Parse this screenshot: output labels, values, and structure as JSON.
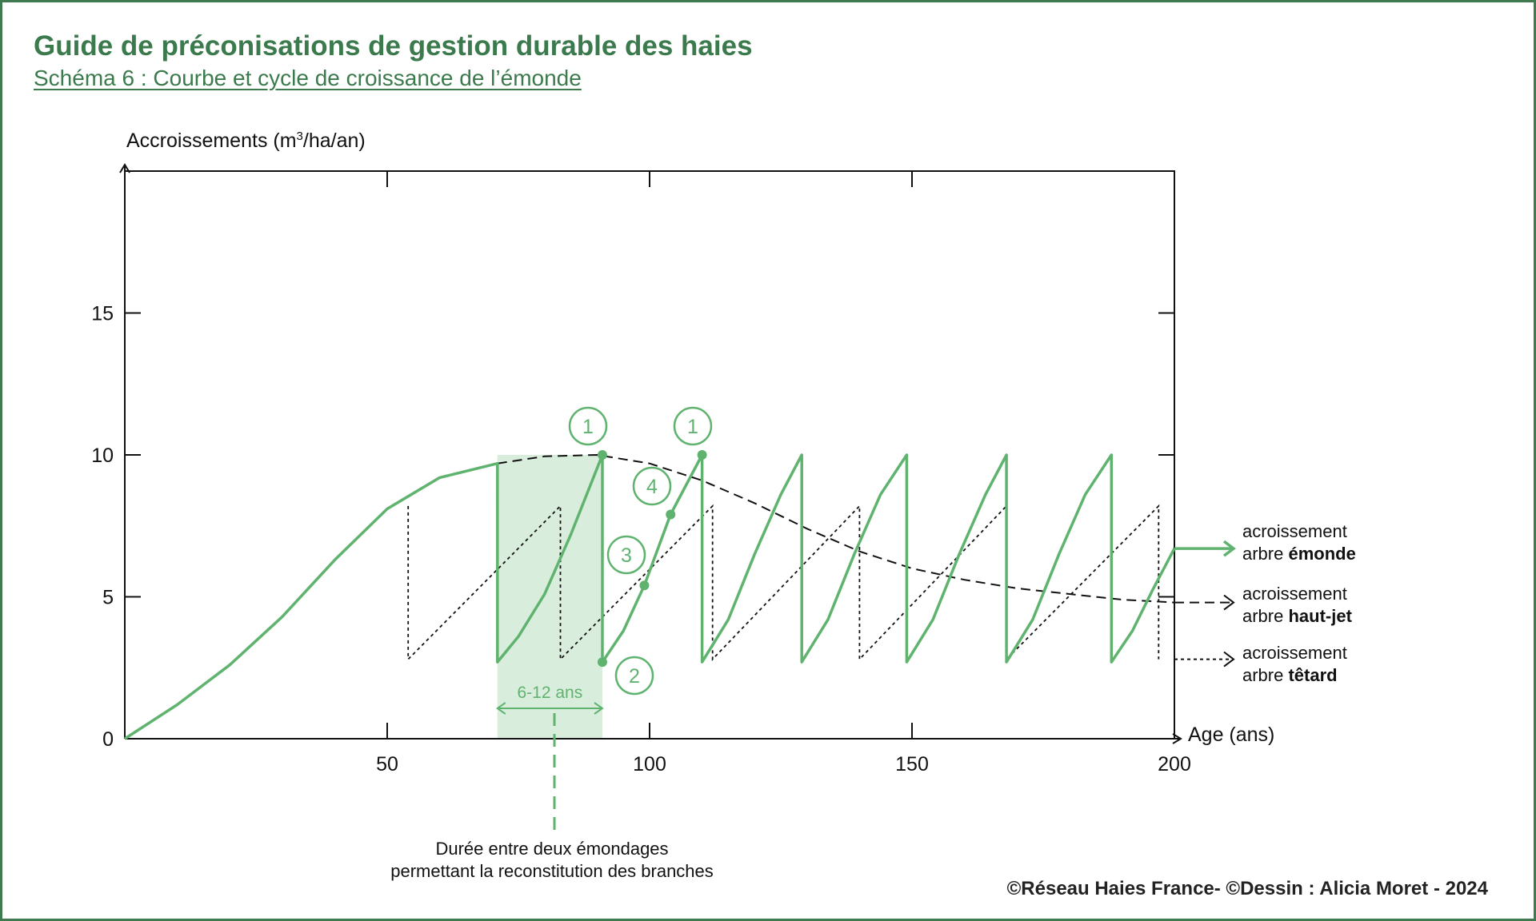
{
  "header": {
    "title": "Guide de préconisations de gestion durable des haies",
    "subtitle": "Schéma 6 : Courbe et cycle de croissance de l’émonde"
  },
  "credit": "©Réseau Haies France- ©Dessin : Alicia Moret - 2024",
  "colors": {
    "green": "#5fb36f",
    "green_fill": "#d9eddd",
    "title_green": "#3a7a4c",
    "axis": "#111111"
  },
  "chart_data": {
    "type": "line",
    "ylabel_base": "Accroissements (m",
    "ylabel_sup": "3",
    "ylabel_end": "/ha/an)",
    "xlabel": "Age (ans)",
    "xlim": [
      0,
      200
    ],
    "ylim": [
      0,
      20
    ],
    "x_ticks": [
      50,
      100,
      150,
      200
    ],
    "y_ticks": [
      0,
      5,
      10,
      15
    ],
    "series": [
      {
        "name": "acroissement arbre émonde",
        "label_normal": "arbre ",
        "label_bold": "émonde",
        "style": "solid-green",
        "points": [
          [
            0,
            0
          ],
          [
            10,
            1.2
          ],
          [
            20,
            2.6
          ],
          [
            30,
            4.3
          ],
          [
            40,
            6.3
          ],
          [
            50,
            8.1
          ],
          [
            60,
            9.2
          ],
          [
            71,
            9.7
          ],
          [
            71,
            2.7
          ],
          [
            75,
            3.6
          ],
          [
            80,
            5.1
          ],
          [
            85,
            7.2
          ],
          [
            91,
            10
          ],
          [
            91,
            2.7
          ],
          [
            95,
            3.8
          ],
          [
            99,
            5.4
          ],
          [
            104,
            7.9
          ],
          [
            110,
            10
          ],
          [
            110,
            2.7
          ],
          [
            115,
            4.2
          ],
          [
            120,
            6.5
          ],
          [
            125,
            8.6
          ],
          [
            129,
            10
          ],
          [
            129,
            2.7
          ],
          [
            134,
            4.2
          ],
          [
            139,
            6.5
          ],
          [
            144,
            8.6
          ],
          [
            149,
            10
          ],
          [
            149,
            2.7
          ],
          [
            154,
            4.2
          ],
          [
            159,
            6.5
          ],
          [
            164,
            8.6
          ],
          [
            168,
            10
          ],
          [
            168,
            2.7
          ],
          [
            173,
            4.2
          ],
          [
            178,
            6.5
          ],
          [
            183,
            8.6
          ],
          [
            188,
            10
          ],
          [
            188,
            2.7
          ],
          [
            192,
            3.8
          ],
          [
            196,
            5.3
          ],
          [
            200,
            6.7
          ]
        ]
      },
      {
        "name": "acroissement arbre haut-jet",
        "label_normal": "arbre ",
        "label_bold": "haut-jet",
        "style": "dashed-black",
        "points": [
          [
            71,
            9.7
          ],
          [
            80,
            9.95
          ],
          [
            90,
            10
          ],
          [
            100,
            9.7
          ],
          [
            110,
            9.1
          ],
          [
            120,
            8.3
          ],
          [
            130,
            7.4
          ],
          [
            140,
            6.6
          ],
          [
            150,
            6.0
          ],
          [
            160,
            5.6
          ],
          [
            170,
            5.3
          ],
          [
            180,
            5.1
          ],
          [
            190,
            4.9
          ],
          [
            200,
            4.8
          ]
        ]
      },
      {
        "name": "acroissement arbre têtard",
        "label_normal": "arbre ",
        "label_bold": "têtard",
        "style": "dotted-black",
        "points": [
          [
            54,
            8.2
          ],
          [
            54,
            2.8
          ],
          [
            83,
            8.2
          ],
          [
            83,
            2.8
          ],
          [
            112,
            8.2
          ],
          [
            112,
            2.8
          ],
          [
            140,
            8.2
          ],
          [
            140,
            2.8
          ],
          [
            168,
            8.2
          ],
          [
            168,
            2.8
          ],
          [
            197,
            8.2
          ],
          [
            197,
            2.8
          ]
        ]
      }
    ],
    "legend_prefix": "acroissement",
    "shaded_range": {
      "x": [
        71,
        91
      ],
      "label": "6-12 ans"
    },
    "annotation": {
      "line1": "Durée entre deux émondages",
      "line2": "permettant la reconstitution des branches"
    },
    "markers": [
      {
        "label": "1",
        "x": 91,
        "y": 10
      },
      {
        "label": "2",
        "x": 91,
        "y": 2.7
      },
      {
        "label": "3",
        "x": 99,
        "y": 5.4
      },
      {
        "label": "4",
        "x": 104,
        "y": 7.9
      },
      {
        "label": "1",
        "x": 110,
        "y": 10
      }
    ]
  }
}
